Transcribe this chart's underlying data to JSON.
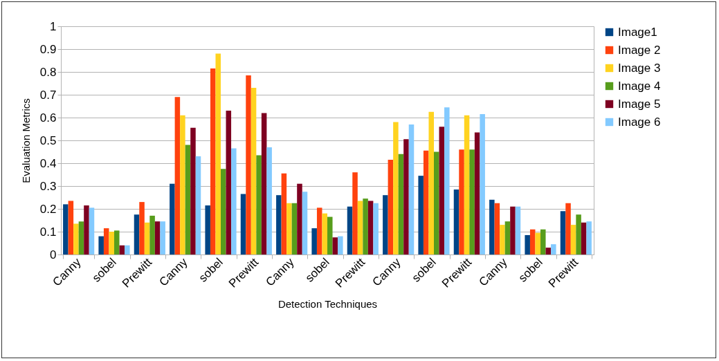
{
  "chart_data": {
    "type": "bar",
    "xlabel": "Detection Techniques",
    "ylabel": "Evaluation Metrics",
    "categories": [
      "Canny",
      "sobel",
      "Prewitt",
      "Canny",
      "sobel",
      "Prewitt",
      "Canny",
      "sobel",
      "Prewitt",
      "Canny",
      "sobel",
      "Prewitt",
      "Canny",
      "sobel",
      "Prewitt"
    ],
    "series": [
      {
        "name": "Image1",
        "color": "#004586",
        "values": [
          0.22,
          0.08,
          0.175,
          0.31,
          0.215,
          0.265,
          0.26,
          0.115,
          0.21,
          0.26,
          0.345,
          0.285,
          0.24,
          0.085,
          0.19
        ]
      },
      {
        "name": "Image 2",
        "color": "#ff420e",
        "values": [
          0.235,
          0.115,
          0.23,
          0.69,
          0.815,
          0.785,
          0.355,
          0.205,
          0.36,
          0.415,
          0.455,
          0.46,
          0.225,
          0.11,
          0.225
        ]
      },
      {
        "name": "Image 3",
        "color": "#ffd320",
        "values": [
          0.135,
          0.1,
          0.14,
          0.61,
          0.88,
          0.73,
          0.225,
          0.18,
          0.235,
          0.58,
          0.625,
          0.61,
          0.13,
          0.095,
          0.13
        ]
      },
      {
        "name": "Image 4",
        "color": "#579d1c",
        "values": [
          0.145,
          0.105,
          0.17,
          0.48,
          0.375,
          0.435,
          0.225,
          0.165,
          0.245,
          0.44,
          0.45,
          0.46,
          0.145,
          0.11,
          0.175
        ]
      },
      {
        "name": "Image 5",
        "color": "#7e0021",
        "values": [
          0.215,
          0.04,
          0.145,
          0.555,
          0.63,
          0.62,
          0.31,
          0.075,
          0.235,
          0.505,
          0.56,
          0.535,
          0.21,
          0.03,
          0.14
        ]
      },
      {
        "name": "Image 6",
        "color": "#83caff",
        "values": [
          0.205,
          0.04,
          0.145,
          0.43,
          0.465,
          0.47,
          0.275,
          0.08,
          0.225,
          0.57,
          0.645,
          0.615,
          0.21,
          0.045,
          0.145
        ]
      }
    ],
    "ylim": [
      0,
      1
    ],
    "yticks": [
      0,
      0.1,
      0.2,
      0.3,
      0.4,
      0.5,
      0.6,
      0.7,
      0.8,
      0.9,
      1
    ],
    "grid": "y",
    "legend": "right"
  }
}
